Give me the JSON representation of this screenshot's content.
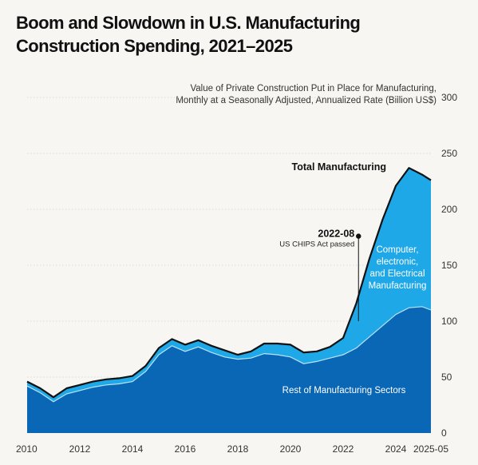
{
  "chart_data": {
    "type": "area",
    "title_lines": [
      "Boom and Slowdown in U.S. Manufacturing",
      "Construction Spending, 2021–2025"
    ],
    "subtitle_lines": [
      "Value of Private Construction Put in Place for Manufacturing,",
      "Monthly at a Seasonally Adjusted, Annualized Rate (Billion US$)"
    ],
    "ylim": [
      0,
      300
    ],
    "y_ticks": [
      0,
      50,
      100,
      150,
      200,
      250,
      300
    ],
    "x_ticks": [
      "2010",
      "2012",
      "2014",
      "2016",
      "2018",
      "2020",
      "2022",
      "2024",
      "2025-05"
    ],
    "x": [
      "2010-01",
      "2010-07",
      "2011-01",
      "2011-07",
      "2012-01",
      "2012-07",
      "2013-01",
      "2013-07",
      "2014-01",
      "2014-07",
      "2015-01",
      "2015-07",
      "2016-01",
      "2016-07",
      "2017-01",
      "2017-07",
      "2018-01",
      "2018-07",
      "2019-01",
      "2019-07",
      "2020-01",
      "2020-07",
      "2021-01",
      "2021-07",
      "2022-01",
      "2022-07",
      "2023-01",
      "2023-07",
      "2024-01",
      "2024-07",
      "2025-01",
      "2025-05"
    ],
    "series": [
      {
        "name": "Rest of Manufacturing Sectors",
        "color": "#0a67b5",
        "values": [
          42,
          36,
          28,
          35,
          38,
          41,
          43,
          44,
          46,
          55,
          70,
          78,
          73,
          77,
          72,
          68,
          66,
          67,
          71,
          70,
          68,
          62,
          64,
          67,
          70,
          76,
          86,
          96,
          106,
          112,
          113,
          110
        ]
      },
      {
        "name": "Computer, electronic, and Electrical Manufacturing",
        "color": "#1ea8e8",
        "values": [
          4,
          4,
          4,
          5,
          5,
          5,
          5,
          5,
          5,
          5,
          6,
          6,
          6,
          6,
          6,
          6,
          4,
          6,
          9,
          10,
          11,
          10,
          9,
          10,
          15,
          40,
          70,
          95,
          115,
          125,
          118,
          116
        ]
      }
    ],
    "total_label": "Total Manufacturing",
    "total_line_color": "#111111",
    "annotation": {
      "date": "2022-08",
      "text": "US CHIPS Act passed",
      "value": 176
    }
  }
}
